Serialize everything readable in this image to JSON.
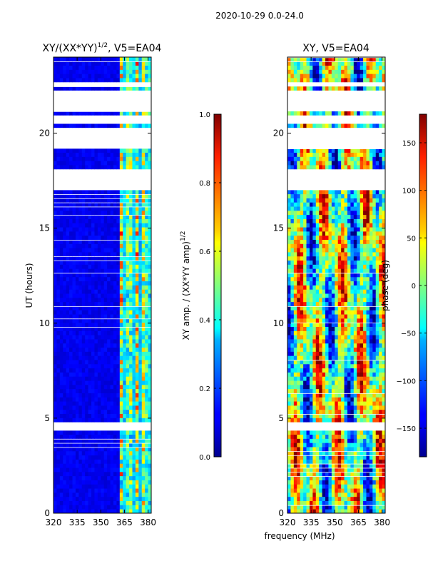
{
  "figure_title": "2020-10-29 0.0-24.0",
  "x_axis_label": "frequency (MHz)",
  "chart_data": [
    {
      "type": "heatmap",
      "title_main": "XY/(XX*YY)",
      "title_sup": "1/2",
      "title_suffix": ", V5=EA04",
      "xlabel": "frequency (MHz)",
      "ylabel": "UT (hours)",
      "xlim": [
        320,
        382
      ],
      "ylim": [
        0,
        24
      ],
      "xticks": [
        320,
        335,
        350,
        365,
        380
      ],
      "yticks": [
        0,
        5,
        10,
        15,
        20
      ],
      "colorbar": {
        "label_main": "XY amp. / (XX*YY amp)",
        "label_sup": "1/2",
        "range": [
          0.0,
          1.0
        ],
        "ticks": [
          "0.0",
          "0.2",
          "0.4",
          "0.6",
          "0.8",
          "1.0"
        ],
        "colormap": "jet"
      },
      "data_gaps_hours": [
        [
          4.4,
          4.7
        ],
        [
          17.0,
          18.1
        ],
        [
          19.3,
          20.3
        ],
        [
          20.5,
          21.0
        ],
        [
          21.2,
          22.3
        ],
        [
          22.5,
          22.6
        ]
      ],
      "description": "Low normalized amplitude (~0.05-0.15) across 320-362 MHz; enhanced amplitude (~0.3-0.9) in 362-378 MHz band"
    },
    {
      "type": "heatmap",
      "title": "XY, V5=EA04",
      "xlabel": "frequency (MHz)",
      "ylabel": "",
      "xlim": [
        320,
        382
      ],
      "ylim": [
        0,
        24
      ],
      "xticks": [
        320,
        335,
        350,
        365,
        380
      ],
      "yticks": [
        0,
        5,
        10,
        15,
        20
      ],
      "colorbar": {
        "label": "phase (deg)",
        "range": [
          -180,
          180
        ],
        "ticks": [
          "−150",
          "−100",
          "−50",
          "0",
          "50",
          "100",
          "150"
        ],
        "colormap": "jet"
      },
      "data_gaps_hours": [
        [
          4.4,
          4.7
        ],
        [
          17.0,
          18.1
        ],
        [
          19.3,
          20.3
        ],
        [
          20.5,
          21.0
        ],
        [
          21.2,
          22.3
        ],
        [
          22.5,
          22.6
        ]
      ],
      "description": "Phase values spanning full -180 to 180 deg range with frequency-dependent structure"
    }
  ]
}
